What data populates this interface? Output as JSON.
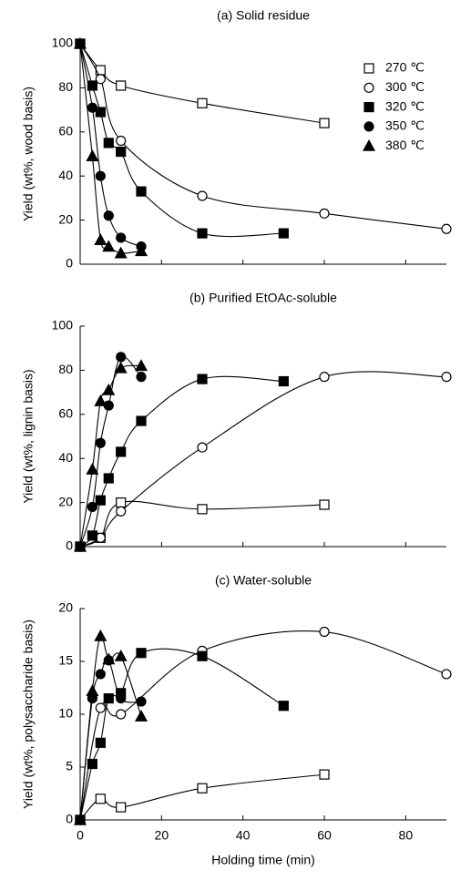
{
  "chart_data": [
    {
      "type": "scatter",
      "title": "(a) Solid residue",
      "ylabel": "Yield (wt%, wood basis)",
      "xlim": [
        0,
        90
      ],
      "xticks": [
        0,
        20,
        40,
        60,
        80
      ],
      "show_xtick_labels": false,
      "ylim": [
        0,
        100
      ],
      "yticks": [
        0,
        20,
        40,
        60,
        80,
        100
      ],
      "legend": "upper right",
      "fit_curves": true,
      "series": [
        {
          "name": "270 ℃",
          "marker": "square",
          "filled": false,
          "color": "#000000",
          "x": [
            0,
            5,
            10,
            30,
            60
          ],
          "values": [
            100,
            88,
            81,
            73,
            64
          ]
        },
        {
          "name": "300 ℃",
          "marker": "circle",
          "filled": false,
          "color": "#000000",
          "x": [
            0,
            5,
            10,
            30,
            60,
            90
          ],
          "values": [
            100,
            84,
            56,
            31,
            23,
            16
          ]
        },
        {
          "name": "320 ℃",
          "marker": "square",
          "filled": true,
          "color": "#000000",
          "x": [
            0,
            3,
            5,
            7,
            10,
            15,
            30,
            50
          ],
          "values": [
            100,
            81,
            69,
            55,
            51,
            33,
            14,
            14
          ]
        },
        {
          "name": "350 ℃",
          "marker": "circle",
          "filled": true,
          "color": "#000000",
          "x": [
            0,
            3,
            5,
            7,
            10,
            15
          ],
          "values": [
            100,
            71,
            40,
            22,
            12,
            8
          ]
        },
        {
          "name": "380 ℃",
          "marker": "triangle",
          "filled": true,
          "color": "#000000",
          "x": [
            0,
            3,
            5,
            7,
            10,
            15
          ],
          "values": [
            100,
            49,
            11,
            8,
            5,
            6
          ]
        }
      ]
    },
    {
      "type": "scatter",
      "title": "(b) Purified EtOAc-soluble",
      "ylabel": "Yield (wt%, lignin basis)",
      "xlim": [
        0,
        90
      ],
      "xticks": [
        0,
        20,
        40,
        60,
        80
      ],
      "show_xtick_labels": false,
      "ylim": [
        0,
        100
      ],
      "yticks": [
        0,
        20,
        40,
        60,
        80,
        100
      ],
      "fit_curves": true,
      "series": [
        {
          "marker": "square",
          "filled": false,
          "color": "#000000",
          "x": [
            0,
            5,
            10,
            30,
            60
          ],
          "values": [
            0,
            4,
            20,
            17,
            19
          ]
        },
        {
          "marker": "circle",
          "filled": false,
          "color": "#000000",
          "x": [
            0,
            5,
            10,
            30,
            60,
            90
          ],
          "values": [
            0,
            4,
            16,
            45,
            77,
            77
          ]
        },
        {
          "marker": "square",
          "filled": true,
          "color": "#000000",
          "x": [
            0,
            3,
            5,
            7,
            10,
            15,
            30,
            50
          ],
          "values": [
            0,
            5,
            21,
            31,
            43,
            57,
            76,
            75
          ]
        },
        {
          "marker": "circle",
          "filled": true,
          "color": "#000000",
          "x": [
            0,
            3,
            5,
            7,
            10,
            15
          ],
          "values": [
            0,
            18,
            47,
            64,
            86,
            77
          ]
        },
        {
          "marker": "triangle",
          "filled": true,
          "color": "#000000",
          "x": [
            0,
            3,
            5,
            7,
            10,
            15
          ],
          "values": [
            0,
            35,
            66,
            71,
            81,
            82
          ]
        }
      ]
    },
    {
      "type": "scatter",
      "title": "(c) Water-soluble",
      "ylabel": "Yield (wt%, polysaccharide basis)",
      "xlabel": "Holding time (min)",
      "xlim": [
        0,
        90
      ],
      "xticks": [
        0,
        20,
        40,
        60,
        80
      ],
      "show_xtick_labels": true,
      "ylim": [
        0,
        20
      ],
      "yticks": [
        0,
        5,
        10,
        15,
        20
      ],
      "fit_curves": true,
      "series": [
        {
          "marker": "square",
          "filled": false,
          "color": "#000000",
          "x": [
            0,
            5,
            10,
            30,
            60
          ],
          "values": [
            0,
            2,
            1.2,
            3,
            4.3
          ]
        },
        {
          "marker": "circle",
          "filled": false,
          "color": "#000000",
          "x": [
            0,
            5,
            10,
            30,
            60,
            90
          ],
          "values": [
            0,
            10.6,
            10,
            16,
            17.8,
            13.8
          ]
        },
        {
          "marker": "square",
          "filled": true,
          "color": "#000000",
          "x": [
            0,
            3,
            5,
            7,
            10,
            15,
            30,
            50
          ],
          "values": [
            0,
            5.3,
            7.3,
            11.5,
            12,
            15.8,
            15.5,
            10.8
          ]
        },
        {
          "marker": "circle",
          "filled": true,
          "color": "#000000",
          "x": [
            0,
            3,
            5,
            7,
            10,
            15
          ],
          "values": [
            0,
            11.5,
            13.8,
            15.1,
            11.5,
            11.2
          ]
        },
        {
          "marker": "triangle",
          "filled": true,
          "color": "#000000",
          "x": [
            0,
            3,
            5,
            7,
            10,
            15
          ],
          "values": [
            0,
            12.2,
            17.4,
            15.2,
            15.5,
            9.8
          ]
        }
      ]
    }
  ]
}
